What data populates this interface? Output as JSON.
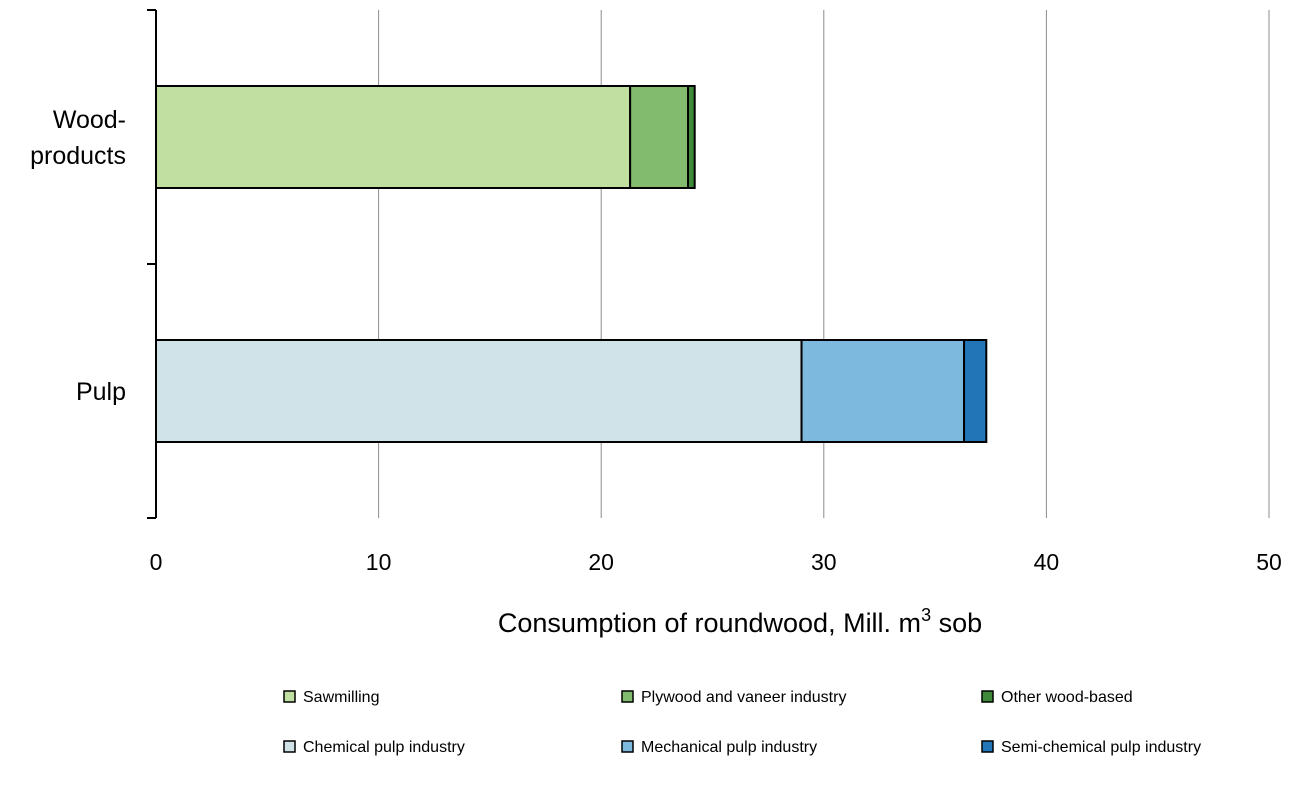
{
  "chart_data": {
    "type": "bar",
    "orientation": "horizontal",
    "stacked": true,
    "categories": [
      {
        "label_lines": [
          "Wood-",
          "products"
        ]
      },
      {
        "label_lines": [
          "Pulp"
        ]
      }
    ],
    "groups": [
      {
        "category_index": 0,
        "segments": [
          {
            "name": "Sawmilling",
            "value": 21.3,
            "color": "#c0dfa1"
          },
          {
            "name": "Plywood and vaneer industry",
            "value": 2.6,
            "color": "#82bb6e"
          },
          {
            "name": "Other wood-based",
            "value": 0.3,
            "color": "#3f8a3a"
          }
        ]
      },
      {
        "category_index": 1,
        "segments": [
          {
            "name": "Chemical pulp industry",
            "value": 29.0,
            "color": "#d0e3e9"
          },
          {
            "name": "Mechanical pulp industry",
            "value": 7.3,
            "color": "#7db8df"
          },
          {
            "name": "Semi-chemical pulp industry",
            "value": 1.0,
            "color": "#2276b8"
          }
        ]
      }
    ],
    "xlim": [
      0,
      50
    ],
    "xticks": [
      "0",
      "10",
      "20",
      "30",
      "40",
      "50"
    ],
    "xlabel": {
      "prefix": "Consumption of roundwood, Mill. m",
      "superscript": "3",
      "suffix": " sob"
    },
    "grid": true,
    "legend": {
      "placement": "bottom",
      "items": [
        {
          "name": "Sawmilling",
          "color": "#c0dfa1"
        },
        {
          "name": "Plywood and vaneer industry",
          "color": "#82bb6e"
        },
        {
          "name": "Other wood-based",
          "color": "#3f8a3a"
        },
        {
          "name": "Chemical pulp industry",
          "color": "#d0e3e9"
        },
        {
          "name": "Mechanical pulp industry",
          "color": "#7db8df"
        },
        {
          "name": "Semi-chemical pulp industry",
          "color": "#2276b8"
        }
      ]
    }
  }
}
